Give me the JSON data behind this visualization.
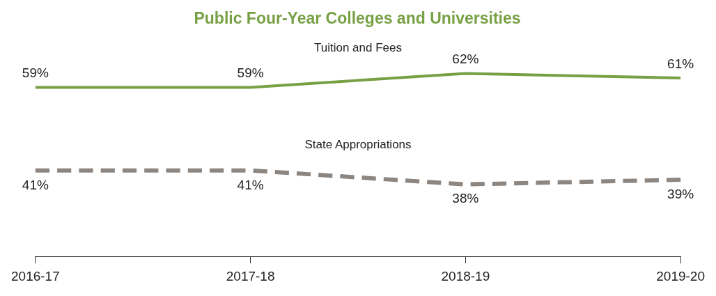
{
  "chart_data": {
    "type": "line",
    "title": "Public Four-Year Colleges and Universities",
    "categories": [
      "2016-17",
      "2017-18",
      "2018-19",
      "2019-20"
    ],
    "series": [
      {
        "name": "Tuition and Fees",
        "color": "#77a044",
        "values": [
          59,
          59,
          62,
          61
        ],
        "value_labels": [
          "59%",
          "59%",
          "62%",
          "61%"
        ],
        "line_style": "solid"
      },
      {
        "name": "State Appropriations",
        "color": "#8c8580",
        "values": [
          41,
          41,
          38,
          39
        ],
        "value_labels": [
          "41%",
          "41%",
          "38%",
          "39%"
        ],
        "line_style": "dashed"
      }
    ],
    "marker": "none"
  }
}
